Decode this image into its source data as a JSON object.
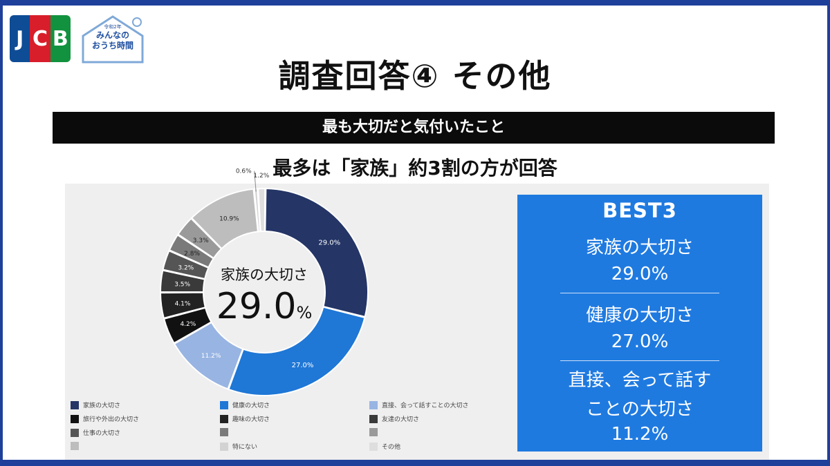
{
  "header": {
    "logo_text": "JCB",
    "campaign_logo": {
      "small": "令和2年",
      "line1": "みんなの",
      "line2": "おうち時間"
    }
  },
  "title": "調査回答④ その他",
  "banner": "最も大切だと気付いたこと",
  "subtitle": "最多は「家族」約3割の方が回答",
  "center": {
    "label": "家族の大切さ",
    "value": "29.0",
    "unit": "%"
  },
  "chart_data": {
    "type": "pie",
    "donut": true,
    "slices": [
      {
        "label": "家族の大切さ",
        "value": 29.0,
        "display": "29.0%",
        "color": "#243566"
      },
      {
        "label": "健康の大切さ",
        "value": 27.0,
        "display": "27.0%",
        "color": "#1f77d6"
      },
      {
        "label": "直接、会って話すことの大切さ",
        "value": 11.2,
        "display": "11.2%",
        "color": "#98b4e2"
      },
      {
        "label": "旅行や外出の大切さ",
        "value": 4.2,
        "display": "4.2%",
        "color": "#111111"
      },
      {
        "label": "趣味の大切さ",
        "value": 4.1,
        "display": "4.1%",
        "color": "#222222"
      },
      {
        "label": "友達の大切さ",
        "value": 3.5,
        "display": "3.5%",
        "color": "#3a3a3a"
      },
      {
        "label": "仕事の大切さ",
        "value": 3.2,
        "display": "3.2%",
        "color": "#555555"
      },
      {
        "label": "",
        "value": 2.8,
        "display": "2.8%",
        "color": "#7a7a7a"
      },
      {
        "label": "",
        "value": 3.3,
        "display": "3.3%",
        "color": "#9a9a9a"
      },
      {
        "label": "",
        "value": 10.9,
        "display": "10.9%",
        "color": "#bdbdbd"
      },
      {
        "label": "特にない",
        "value": 0.6,
        "display": "0.6%",
        "color": "#d3d3d3"
      },
      {
        "label": "その他",
        "value": 1.2,
        "display": "1.2%",
        "color": "#dedede"
      }
    ]
  },
  "legend": [
    {
      "label": "家族の大切さ",
      "color": "#243566"
    },
    {
      "label": "健康の大切さ",
      "color": "#1f77d6"
    },
    {
      "label": "直接、会って話すことの大切さ",
      "color": "#98b4e2"
    },
    {
      "label": "旅行や外出の大切さ",
      "color": "#111111"
    },
    {
      "label": "趣味の大切さ",
      "color": "#222222"
    },
    {
      "label": "友達の大切さ",
      "color": "#3a3a3a"
    },
    {
      "label": "仕事の大切さ",
      "color": "#555555"
    },
    {
      "label": "",
      "color": "#7a7a7a"
    },
    {
      "label": "",
      "color": "#9a9a9a"
    },
    {
      "label": "",
      "color": "#bdbdbd"
    },
    {
      "label": "特にない",
      "color": "#d3d3d3"
    },
    {
      "label": "その他",
      "color": "#dedede"
    }
  ],
  "best3": {
    "title": "BEST3",
    "items": [
      {
        "name": "家族の大切さ",
        "value": "29.0%"
      },
      {
        "name": "健康の大切さ",
        "value": "27.0%"
      },
      {
        "name_lines": [
          "直接、会って話す",
          "ことの大切さ"
        ],
        "value": "11.2%"
      }
    ]
  }
}
